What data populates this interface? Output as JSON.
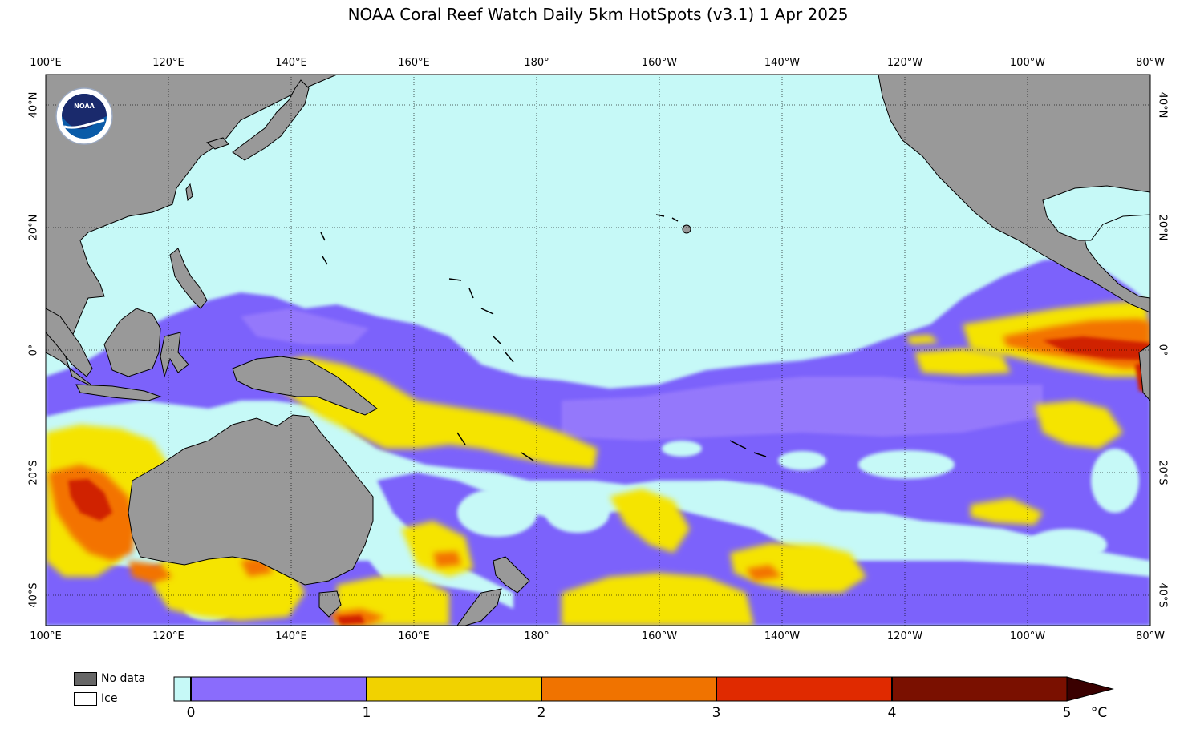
{
  "title": "NOAA Coral Reef Watch Daily 5km HotSpots  (v3.1)   1 Apr 2025",
  "logo_text": "NOAA",
  "lon_ticks": [
    "100°E",
    "120°E",
    "140°E",
    "160°E",
    "180°",
    "160°W",
    "140°W",
    "120°W",
    "100°W",
    "80°W"
  ],
  "lat_ticks": [
    "40°N",
    "20°N",
    "0°",
    "20°S",
    "40°S"
  ],
  "legend": {
    "nodata_label": "No data",
    "ice_label": "Ice"
  },
  "colorbar": {
    "labels": [
      "0",
      "1",
      "2",
      "3",
      "4",
      "5"
    ],
    "unit": "°C"
  },
  "colors": {
    "ocean": "#c6f9f7",
    "land": "#999999",
    "no_data": "#666666"
  }
}
